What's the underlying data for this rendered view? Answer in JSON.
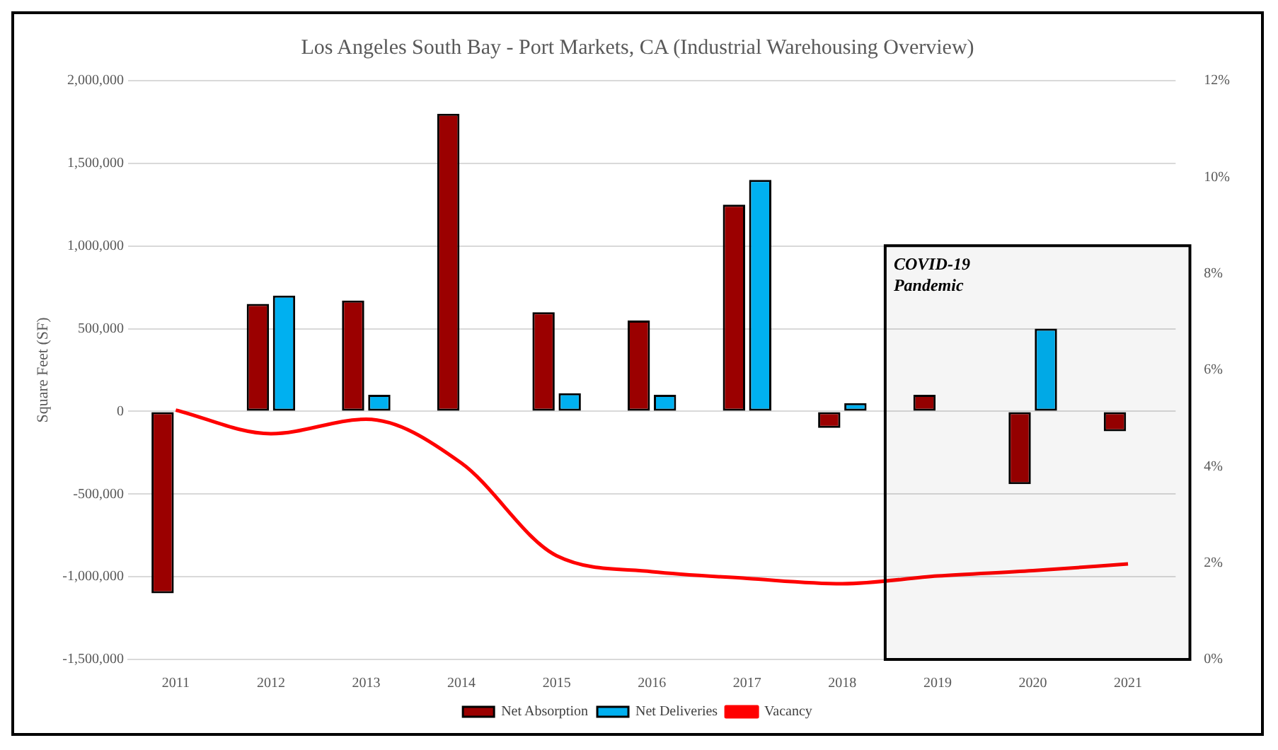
{
  "chart_data": {
    "type": "bar",
    "title": "Los Angeles South Bay - Port Markets, CA (Industrial Warehousing Overview)",
    "ylabel": "Square Feet (SF)",
    "categories": [
      "2011",
      "2012",
      "2013",
      "2014",
      "2015",
      "2016",
      "2017",
      "2018",
      "2019",
      "2020",
      "2021"
    ],
    "series": [
      {
        "name": "Net Absorption",
        "color": "#9b0000",
        "values": [
          -1100000,
          650000,
          670000,
          1800000,
          600000,
          550000,
          1250000,
          -100000,
          100000,
          -440000,
          -120000
        ]
      },
      {
        "name": "Net Deliveries",
        "color": "#00b0f0",
        "values": [
          null,
          700000,
          100000,
          null,
          110000,
          100000,
          1400000,
          50000,
          null,
          500000,
          null
        ]
      },
      {
        "name": "Vacancy",
        "type": "line",
        "axis": "y2",
        "color": "#ff0000",
        "values": [
          5.17,
          4.68,
          4.98,
          4.07,
          2.15,
          1.82,
          1.68,
          1.57,
          1.73,
          1.84,
          1.98
        ]
      }
    ],
    "ylim": [
      -1500000,
      2000000
    ],
    "yticks": [
      {
        "value": -1500000,
        "label": "-1,500,000"
      },
      {
        "value": -1000000,
        "label": "-1,000,000"
      },
      {
        "value": -500000,
        "label": "-500,000"
      },
      0,
      {
        "value": 500000,
        "label": "500,000"
      },
      {
        "value": 1000000,
        "label": "1,000,000"
      },
      {
        "value": 1500000,
        "label": "1,500,000"
      },
      {
        "value": 2000000,
        "label": "2,000,000"
      }
    ],
    "y2lim": [
      0,
      12
    ],
    "y2ticks": [
      {
        "value": 0,
        "label": "0%"
      },
      {
        "value": 2,
        "label": "2%"
      },
      {
        "value": 4,
        "label": "4%"
      },
      {
        "value": 6,
        "label": "6%"
      },
      {
        "value": 8,
        "label": "8%"
      },
      {
        "value": 10,
        "label": "10%"
      },
      {
        "value": 12,
        "label": "12%"
      }
    ],
    "bands": [
      {
        "axis": "x",
        "from": "2019",
        "to": "2021",
        "label": "COVID-19 Pandemic",
        "color": "#000000"
      }
    ],
    "grid": "y",
    "legend": "bottom",
    "marker": "none"
  }
}
